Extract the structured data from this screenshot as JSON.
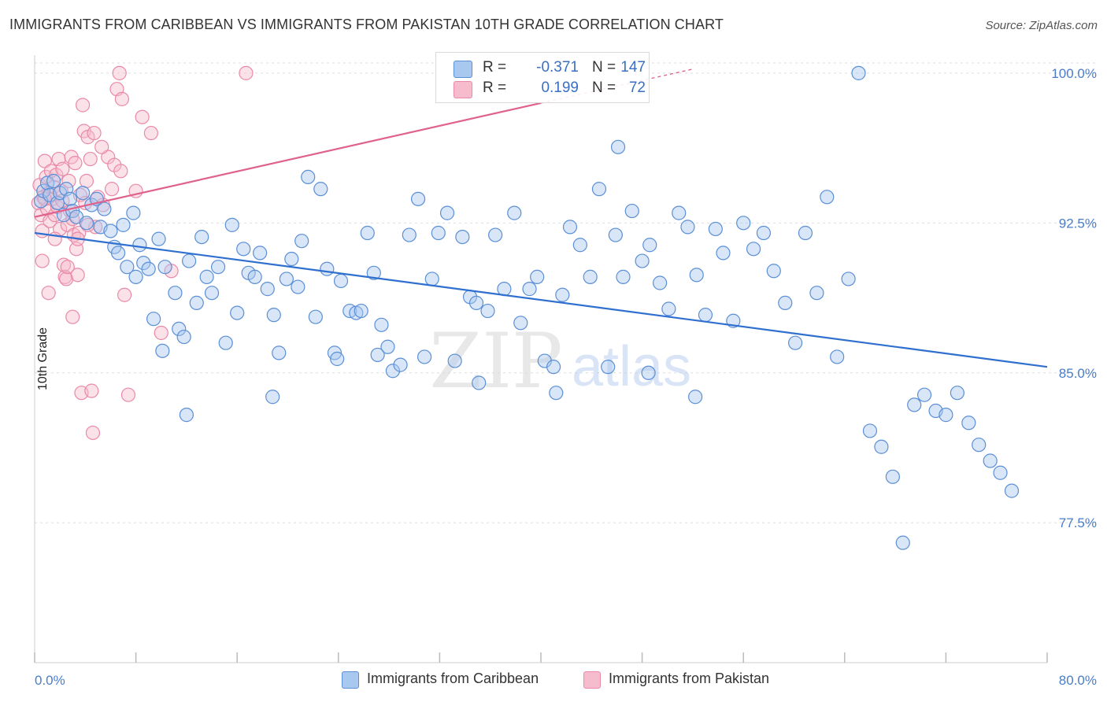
{
  "title": "IMMIGRANTS FROM CARIBBEAN VS IMMIGRANTS FROM PAKISTAN 10TH GRADE CORRELATION CHART",
  "source": "Source: ZipAtlas.com",
  "watermark": {
    "zip": "ZIP",
    "atlas": "atlas"
  },
  "legend_top": {
    "rows": [
      {
        "r_label": "R =",
        "r_value": "-0.371",
        "n_label": "N =",
        "n_value": "147"
      },
      {
        "r_label": "R =",
        "r_value": "0.199",
        "n_label": "N =",
        "n_value": "72"
      }
    ]
  },
  "legend_bottom": {
    "items": [
      {
        "label": "Immigrants from Caribbean"
      },
      {
        "label": "Immigrants from Pakistan"
      }
    ]
  },
  "colors": {
    "caribbean_fill": "#a9c8ef",
    "caribbean_stroke": "#5b8fd6",
    "caribbean_line": "#2f6fcf",
    "pakistan_fill": "#f6bccd",
    "pakistan_stroke": "#e98aa8",
    "pakistan_line": "#e0628c",
    "tick_text": "#4a7cc9",
    "grid": "#dddddd"
  },
  "chart_data": {
    "type": "scatter",
    "title": "IMMIGRANTS FROM CARIBBEAN VS IMMIGRANTS FROM PAKISTAN 10TH GRADE CORRELATION CHART",
    "xlabel": "",
    "ylabel": "10th Grade",
    "xlim": [
      0,
      80
    ],
    "ylim": [
      70.5,
      100.9
    ],
    "x_tick_labels": [
      "0.0%",
      "80.0%"
    ],
    "y_ticks": [
      77.5,
      85.0,
      92.5,
      100.0
    ],
    "y_tick_labels": [
      "77.5%",
      "85.0%",
      "92.5%",
      "100.0%"
    ],
    "grid": true,
    "legend_placement": "top-center",
    "series": [
      {
        "name": "Immigrants from Caribbean",
        "r": -0.371,
        "n": 147,
        "trend": {
          "x0": 0,
          "y0": 92.0,
          "x1": 80,
          "y1": 85.3
        },
        "points": [
          [
            0.5,
            93.6
          ],
          [
            0.7,
            94.1
          ],
          [
            1.0,
            94.5
          ],
          [
            1.2,
            93.9
          ],
          [
            1.5,
            94.6
          ],
          [
            1.8,
            93.5
          ],
          [
            2.0,
            94.0
          ],
          [
            2.3,
            92.9
          ],
          [
            2.5,
            94.2
          ],
          [
            2.8,
            93.7
          ],
          [
            3.0,
            93.1
          ],
          [
            3.3,
            92.8
          ],
          [
            3.8,
            94.0
          ],
          [
            4.1,
            92.5
          ],
          [
            4.5,
            93.4
          ],
          [
            4.9,
            93.7
          ],
          [
            5.2,
            92.3
          ],
          [
            5.5,
            93.2
          ],
          [
            6.0,
            92.1
          ],
          [
            6.3,
            91.3
          ],
          [
            6.6,
            91.0
          ],
          [
            7.0,
            92.4
          ],
          [
            7.3,
            90.3
          ],
          [
            7.8,
            93.0
          ],
          [
            8.0,
            89.8
          ],
          [
            8.3,
            91.4
          ],
          [
            8.6,
            90.5
          ],
          [
            9.0,
            90.2
          ],
          [
            9.4,
            87.7
          ],
          [
            9.8,
            91.7
          ],
          [
            10.1,
            86.1
          ],
          [
            10.3,
            90.3
          ],
          [
            11.1,
            89.0
          ],
          [
            11.4,
            87.2
          ],
          [
            11.8,
            86.8
          ],
          [
            12.2,
            90.6
          ],
          [
            12.8,
            88.5
          ],
          [
            13.2,
            91.8
          ],
          [
            13.6,
            89.8
          ],
          [
            14.0,
            89.0
          ],
          [
            14.5,
            90.3
          ],
          [
            15.1,
            86.5
          ],
          [
            15.6,
            92.4
          ],
          [
            16.0,
            88.0
          ],
          [
            16.5,
            91.2
          ],
          [
            16.9,
            90.0
          ],
          [
            17.4,
            89.8
          ],
          [
            17.8,
            91.0
          ],
          [
            18.4,
            89.2
          ],
          [
            18.9,
            87.9
          ],
          [
            19.3,
            86.0
          ],
          [
            19.9,
            89.7
          ],
          [
            20.3,
            90.7
          ],
          [
            20.8,
            89.3
          ],
          [
            21.1,
            91.6
          ],
          [
            21.6,
            94.8
          ],
          [
            22.2,
            87.8
          ],
          [
            22.6,
            94.2
          ],
          [
            23.1,
            90.2
          ],
          [
            23.7,
            86.0
          ],
          [
            24.2,
            89.6
          ],
          [
            24.9,
            88.1
          ],
          [
            25.4,
            88.0
          ],
          [
            25.8,
            88.1
          ],
          [
            26.3,
            92.0
          ],
          [
            26.8,
            90.0
          ],
          [
            27.4,
            87.4
          ],
          [
            27.9,
            86.3
          ],
          [
            28.3,
            85.1
          ],
          [
            28.9,
            85.4
          ],
          [
            29.6,
            91.9
          ],
          [
            30.3,
            93.7
          ],
          [
            30.8,
            85.8
          ],
          [
            31.4,
            89.7
          ],
          [
            31.9,
            92.0
          ],
          [
            32.6,
            93.0
          ],
          [
            33.2,
            85.6
          ],
          [
            33.8,
            91.8
          ],
          [
            34.4,
            88.8
          ],
          [
            35.1,
            84.5
          ],
          [
            35.8,
            88.1
          ],
          [
            36.4,
            91.9
          ],
          [
            37.1,
            89.2
          ],
          [
            37.9,
            93.0
          ],
          [
            38.4,
            87.5
          ],
          [
            39.1,
            89.2
          ],
          [
            39.7,
            89.8
          ],
          [
            40.3,
            85.6
          ],
          [
            41.0,
            85.3
          ],
          [
            41.7,
            88.9
          ],
          [
            42.3,
            92.3
          ],
          [
            43.1,
            91.4
          ],
          [
            43.9,
            89.8
          ],
          [
            44.6,
            94.2
          ],
          [
            45.3,
            85.3
          ],
          [
            45.9,
            91.9
          ],
          [
            46.5,
            89.8
          ],
          [
            47.2,
            93.1
          ],
          [
            48.0,
            90.6
          ],
          [
            48.6,
            91.4
          ],
          [
            49.4,
            89.5
          ],
          [
            50.1,
            88.2
          ],
          [
            50.9,
            93.0
          ],
          [
            51.6,
            92.3
          ],
          [
            52.3,
            89.9
          ],
          [
            53.0,
            87.9
          ],
          [
            53.8,
            92.2
          ],
          [
            54.4,
            91.0
          ],
          [
            55.2,
            87.6
          ],
          [
            56.0,
            92.5
          ],
          [
            56.8,
            91.2
          ],
          [
            57.6,
            92.0
          ],
          [
            58.4,
            90.1
          ],
          [
            59.3,
            88.5
          ],
          [
            60.1,
            86.5
          ],
          [
            60.9,
            92.0
          ],
          [
            61.8,
            89.0
          ],
          [
            62.6,
            93.8
          ],
          [
            63.4,
            85.8
          ],
          [
            64.3,
            89.7
          ],
          [
            65.1,
            100.0
          ],
          [
            66.0,
            82.1
          ],
          [
            66.9,
            81.3
          ],
          [
            67.8,
            79.8
          ],
          [
            68.6,
            76.5
          ],
          [
            69.5,
            83.4
          ],
          [
            70.3,
            83.9
          ],
          [
            71.2,
            83.1
          ],
          [
            72.0,
            82.9
          ],
          [
            72.9,
            84.0
          ],
          [
            73.8,
            82.5
          ],
          [
            74.6,
            81.4
          ],
          [
            75.5,
            80.6
          ],
          [
            76.3,
            80.0
          ],
          [
            77.2,
            79.1
          ],
          [
            12.0,
            82.9
          ],
          [
            18.8,
            83.8
          ],
          [
            23.9,
            85.7
          ],
          [
            27.1,
            85.9
          ],
          [
            34.9,
            88.5
          ],
          [
            41.2,
            84.0
          ],
          [
            46.1,
            96.3
          ],
          [
            48.5,
            85.0
          ],
          [
            52.2,
            83.8
          ]
        ]
      },
      {
        "name": "Immigrants from Pakistan",
        "r": 0.199,
        "n": 72,
        "trend": {
          "x0": 0,
          "y0": 92.8,
          "x1": 40,
          "y1": 98.5
        },
        "points": [
          [
            0.3,
            93.5
          ],
          [
            0.4,
            94.4
          ],
          [
            0.5,
            92.9
          ],
          [
            0.6,
            92.1
          ],
          [
            0.7,
            93.8
          ],
          [
            0.8,
            95.6
          ],
          [
            0.9,
            94.8
          ],
          [
            1.0,
            93.2
          ],
          [
            1.1,
            94.0
          ],
          [
            1.2,
            92.6
          ],
          [
            1.3,
            95.1
          ],
          [
            1.4,
            93.7
          ],
          [
            1.5,
            94.3
          ],
          [
            1.6,
            92.9
          ],
          [
            1.7,
            94.9
          ],
          [
            1.8,
            93.3
          ],
          [
            1.9,
            95.7
          ],
          [
            2.0,
            92.2
          ],
          [
            2.1,
            94.1
          ],
          [
            2.2,
            93.6
          ],
          [
            2.3,
            90.4
          ],
          [
            2.4,
            89.8
          ],
          [
            2.5,
            89.7
          ],
          [
            2.6,
            92.4
          ],
          [
            2.7,
            94.6
          ],
          [
            2.8,
            93.1
          ],
          [
            2.9,
            95.8
          ],
          [
            3.0,
            92.7
          ],
          [
            3.1,
            91.9
          ],
          [
            3.2,
            95.5
          ],
          [
            3.3,
            91.2
          ],
          [
            3.4,
            89.9
          ],
          [
            3.5,
            92.0
          ],
          [
            3.6,
            93.9
          ],
          [
            3.7,
            84.0
          ],
          [
            3.8,
            98.4
          ],
          [
            3.9,
            97.1
          ],
          [
            4.0,
            93.5
          ],
          [
            4.1,
            94.6
          ],
          [
            4.2,
            96.8
          ],
          [
            4.4,
            95.7
          ],
          [
            4.5,
            84.1
          ],
          [
            4.6,
            82.0
          ],
          [
            4.7,
            97.0
          ],
          [
            4.8,
            92.3
          ],
          [
            5.0,
            93.8
          ],
          [
            5.4,
            93.4
          ],
          [
            5.8,
            95.8
          ],
          [
            6.1,
            94.2
          ],
          [
            6.5,
            99.2
          ],
          [
            6.7,
            100.0
          ],
          [
            6.9,
            98.7
          ],
          [
            7.1,
            88.9
          ],
          [
            7.4,
            83.9
          ],
          [
            8.0,
            94.1
          ],
          [
            8.5,
            97.8
          ],
          [
            9.2,
            97.0
          ],
          [
            10.0,
            87.0
          ],
          [
            10.8,
            90.1
          ],
          [
            16.7,
            100.0
          ],
          [
            0.8,
            93.7
          ],
          [
            1.6,
            91.7
          ],
          [
            2.2,
            95.2
          ],
          [
            3.0,
            87.8
          ],
          [
            4.2,
            92.4
          ],
          [
            5.3,
            96.3
          ],
          [
            6.3,
            95.4
          ],
          [
            6.8,
            95.1
          ],
          [
            1.1,
            89.0
          ],
          [
            2.6,
            90.3
          ],
          [
            3.4,
            91.7
          ],
          [
            0.6,
            90.6
          ]
        ]
      }
    ]
  }
}
